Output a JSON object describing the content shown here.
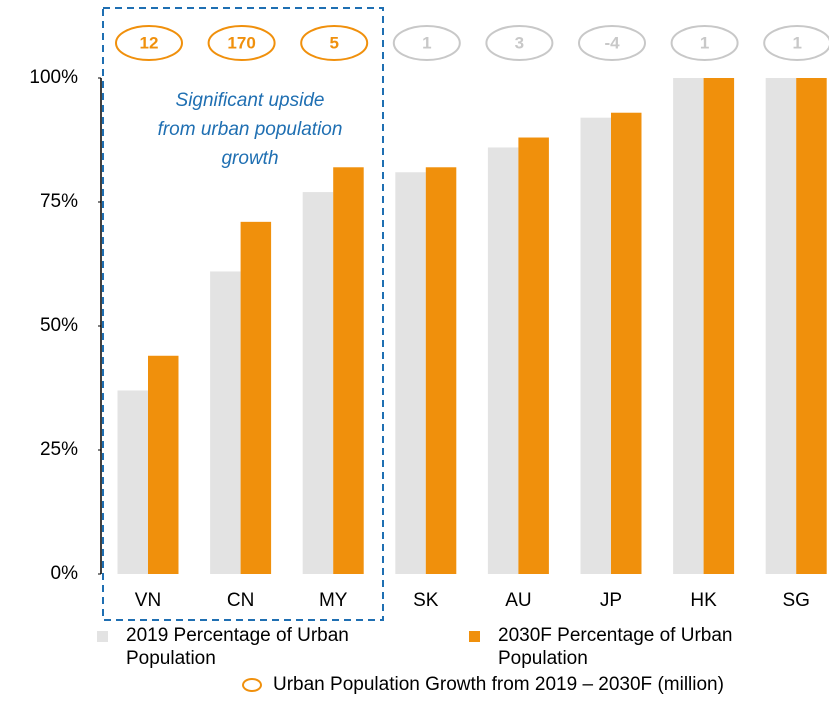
{
  "chart_data": {
    "type": "bar",
    "categories": [
      "VN",
      "CN",
      "MY",
      "SK",
      "AU",
      "JP",
      "HK",
      "SG"
    ],
    "series": [
      {
        "name": "2019 Percentage of Urban Population",
        "color": "#e3e3e3",
        "values": [
          37,
          61,
          77,
          81,
          86,
          92,
          100,
          100
        ]
      },
      {
        "name": "2030F Percentage of Urban Population",
        "color": "#f0900c",
        "values": [
          44,
          71,
          82,
          82,
          88,
          93,
          100,
          100
        ]
      }
    ],
    "growth": {
      "name": "Urban Population Growth from 2019 – 2030F (million)",
      "values": [
        12,
        170,
        5,
        1,
        3,
        -4,
        1,
        1
      ],
      "colors": [
        "#f0900c",
        "#f0900c",
        "#f0900c",
        "#c8c8c8",
        "#c8c8c8",
        "#c8c8c8",
        "#c8c8c8",
        "#c8c8c8"
      ]
    },
    "annotation": [
      "Significant upside",
      "from urban population",
      "growth"
    ],
    "annotation_color": "#1f6fb2",
    "ylim": [
      0,
      100
    ],
    "yticks": [
      {
        "value": 0,
        "label": "0%"
      },
      {
        "value": 25,
        "label": "25%"
      },
      {
        "value": 50,
        "label": "50%"
      },
      {
        "value": 75,
        "label": "75%"
      },
      {
        "value": 100,
        "label": "100%"
      }
    ],
    "grid": false
  }
}
